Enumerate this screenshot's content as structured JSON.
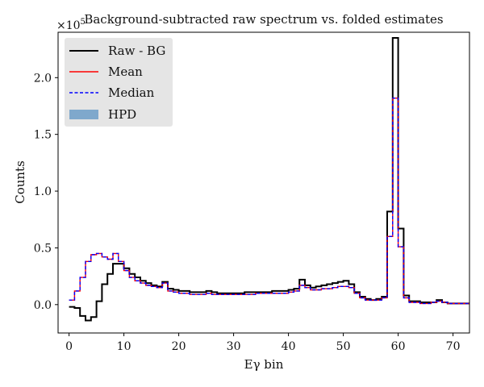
{
  "chart_data": {
    "type": "line",
    "title": "Background-subtracted raw spectrum vs. folded estimates",
    "xlabel": "Eγ bin",
    "ylabel": "Counts",
    "y_scale_label": "×10",
    "y_scale_exponent": "5",
    "xlim": [
      -2,
      73
    ],
    "ylim": [
      -0.25,
      2.4
    ],
    "x_ticks": [
      0,
      10,
      20,
      30,
      40,
      50,
      60,
      70
    ],
    "y_ticks": [
      0.0,
      0.5,
      1.0,
      1.5,
      2.0
    ],
    "x_tick_labels": [
      "0",
      "10",
      "20",
      "30",
      "40",
      "50",
      "60",
      "70"
    ],
    "y_tick_labels": [
      "0.0",
      "0.5",
      "1.0",
      "1.5",
      "2.0"
    ],
    "legend": {
      "placement": "top-left",
      "entries": [
        "Raw - BG",
        "Mean",
        "Median",
        "HPD"
      ]
    },
    "colors": {
      "raw": "#000000",
      "mean": "#ff0000",
      "median": "#0000ff",
      "hpd": "#7fa8cc",
      "legend_bg": "#e5e5e5"
    },
    "series": [
      {
        "name": "Raw - BG",
        "values": [
          -0.02,
          -0.03,
          -0.1,
          -0.14,
          -0.11,
          0.03,
          0.18,
          0.27,
          0.36,
          0.36,
          0.32,
          0.27,
          0.24,
          0.21,
          0.19,
          0.17,
          0.16,
          0.2,
          0.14,
          0.13,
          0.12,
          0.12,
          0.11,
          0.11,
          0.11,
          0.12,
          0.11,
          0.1,
          0.1,
          0.1,
          0.1,
          0.1,
          0.11,
          0.11,
          0.11,
          0.11,
          0.11,
          0.12,
          0.12,
          0.12,
          0.13,
          0.14,
          0.22,
          0.17,
          0.15,
          0.16,
          0.17,
          0.18,
          0.19,
          0.2,
          0.21,
          0.18,
          0.11,
          0.07,
          0.05,
          0.04,
          0.05,
          0.07,
          0.82,
          2.35,
          0.67,
          0.08,
          0.03,
          0.03,
          0.02,
          0.02,
          0.02,
          0.04,
          0.02,
          0.01,
          0.01,
          0.01,
          0.01
        ]
      },
      {
        "name": "Mean",
        "values": [
          0.04,
          0.12,
          0.24,
          0.38,
          0.44,
          0.45,
          0.42,
          0.4,
          0.45,
          0.38,
          0.3,
          0.24,
          0.21,
          0.19,
          0.17,
          0.16,
          0.15,
          0.19,
          0.12,
          0.11,
          0.1,
          0.1,
          0.09,
          0.09,
          0.09,
          0.1,
          0.09,
          0.09,
          0.09,
          0.09,
          0.09,
          0.09,
          0.09,
          0.09,
          0.1,
          0.1,
          0.1,
          0.1,
          0.1,
          0.1,
          0.11,
          0.12,
          0.17,
          0.15,
          0.13,
          0.13,
          0.14,
          0.14,
          0.15,
          0.16,
          0.16,
          0.15,
          0.1,
          0.06,
          0.04,
          0.04,
          0.04,
          0.06,
          0.6,
          1.82,
          0.51,
          0.06,
          0.02,
          0.02,
          0.01,
          0.01,
          0.02,
          0.03,
          0.02,
          0.01,
          0.01,
          0.01,
          0.01
        ]
      },
      {
        "name": "Median",
        "values": [
          0.04,
          0.12,
          0.24,
          0.38,
          0.44,
          0.45,
          0.42,
          0.4,
          0.45,
          0.38,
          0.3,
          0.24,
          0.21,
          0.19,
          0.17,
          0.16,
          0.15,
          0.19,
          0.12,
          0.11,
          0.1,
          0.1,
          0.09,
          0.09,
          0.09,
          0.1,
          0.09,
          0.09,
          0.09,
          0.09,
          0.09,
          0.09,
          0.09,
          0.09,
          0.1,
          0.1,
          0.1,
          0.1,
          0.1,
          0.1,
          0.11,
          0.12,
          0.17,
          0.15,
          0.13,
          0.13,
          0.14,
          0.14,
          0.15,
          0.16,
          0.16,
          0.15,
          0.1,
          0.06,
          0.04,
          0.04,
          0.04,
          0.06,
          0.6,
          1.82,
          0.51,
          0.06,
          0.02,
          0.02,
          0.01,
          0.01,
          0.02,
          0.03,
          0.02,
          0.01,
          0.01,
          0.01,
          0.01
        ]
      }
    ]
  }
}
